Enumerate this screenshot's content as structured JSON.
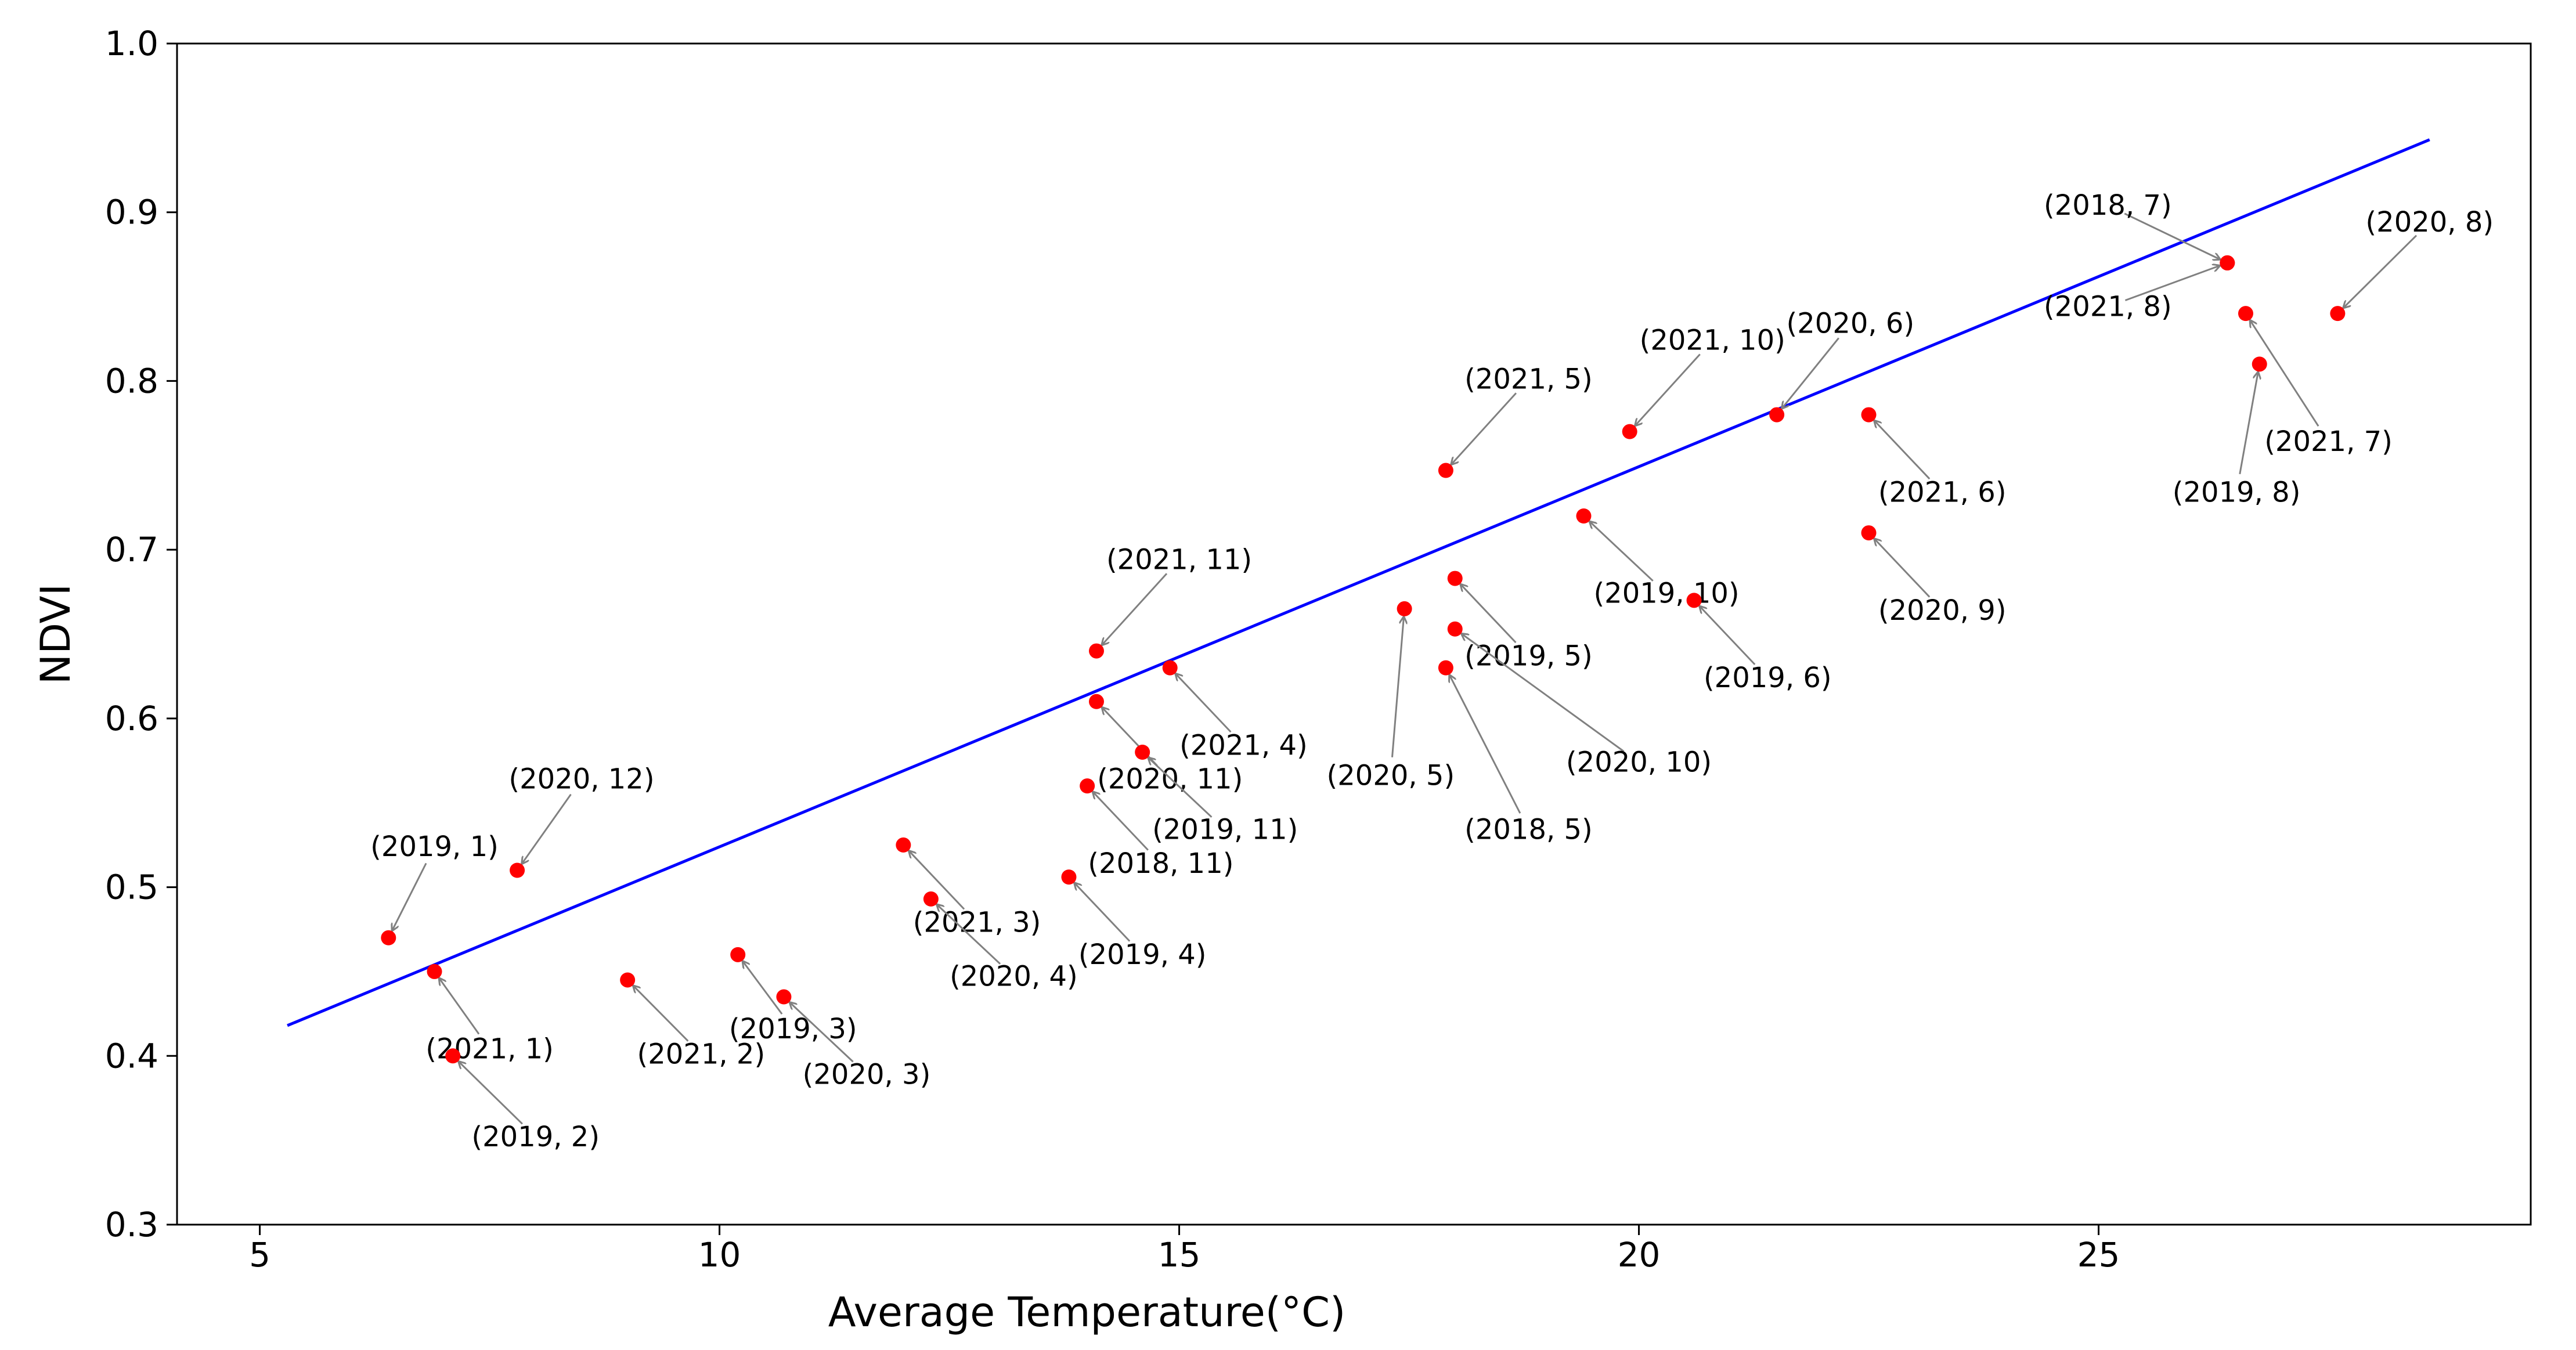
{
  "chart_data": {
    "type": "scatter",
    "title": "",
    "xlabel": "Average Temperature(°C)",
    "ylabel": "NDVI",
    "xlim": [
      4.1,
      29.7
    ],
    "ylim": [
      0.3,
      1.0
    ],
    "xticks": [
      5,
      10,
      15,
      20,
      25
    ],
    "yticks": [
      0.3,
      0.4,
      0.5,
      0.6,
      0.7,
      0.8,
      0.9,
      1.0
    ],
    "xtick_labels": [
      "5",
      "10",
      "15",
      "20",
      "25"
    ],
    "ytick_labels": [
      "0.3",
      "0.4",
      "0.5",
      "0.6",
      "0.7",
      "0.8",
      "0.9",
      "1.0"
    ],
    "grid": false,
    "point_color": "#ff0000",
    "fit_color": "#0000ff",
    "arrow_color": "#808080",
    "fit_line": {
      "x": [
        5.3,
        28.6
      ],
      "y": [
        0.418,
        0.943
      ]
    },
    "points": [
      {
        "label": "(2019, 1)",
        "x": 6.4,
        "y": 0.47,
        "lx": 6.9,
        "ly": 0.524
      },
      {
        "label": "(2020, 12)",
        "x": 7.8,
        "y": 0.51,
        "lx": 8.5,
        "ly": 0.564
      },
      {
        "label": "(2021, 1)",
        "x": 6.9,
        "y": 0.45,
        "lx": 7.5,
        "ly": 0.404
      },
      {
        "label": "(2019, 2)",
        "x": 7.1,
        "y": 0.4,
        "lx": 8.0,
        "ly": 0.352
      },
      {
        "label": "(2021, 2)",
        "x": 9.0,
        "y": 0.445,
        "lx": 9.8,
        "ly": 0.401
      },
      {
        "label": "(2019, 3)",
        "x": 10.2,
        "y": 0.46,
        "lx": 10.8,
        "ly": 0.416
      },
      {
        "label": "(2020, 3)",
        "x": 10.7,
        "y": 0.435,
        "lx": 11.6,
        "ly": 0.389
      },
      {
        "label": "(2021, 3)",
        "x": 12.0,
        "y": 0.525,
        "lx": 12.8,
        "ly": 0.479
      },
      {
        "label": "(2020, 4)",
        "x": 12.3,
        "y": 0.493,
        "lx": 13.2,
        "ly": 0.447
      },
      {
        "label": "(2019, 4)",
        "x": 13.8,
        "y": 0.506,
        "lx": 14.6,
        "ly": 0.46
      },
      {
        "label": "(2018, 11)",
        "x": 14.0,
        "y": 0.56,
        "lx": 14.8,
        "ly": 0.514
      },
      {
        "label": "(2020, 11)",
        "x": 14.1,
        "y": 0.61,
        "lx": 14.9,
        "ly": 0.564
      },
      {
        "label": "(2019, 11)",
        "x": 14.6,
        "y": 0.58,
        "lx": 15.5,
        "ly": 0.534
      },
      {
        "label": "(2021, 11)",
        "x": 14.1,
        "y": 0.64,
        "lx": 15.0,
        "ly": 0.694
      },
      {
        "label": "(2021, 4)",
        "x": 14.9,
        "y": 0.63,
        "lx": 15.7,
        "ly": 0.584
      },
      {
        "label": "(2020, 5)",
        "x": 17.45,
        "y": 0.665,
        "lx": 17.3,
        "ly": 0.566
      },
      {
        "label": "(2021, 5)",
        "x": 17.9,
        "y": 0.747,
        "lx": 18.8,
        "ly": 0.801
      },
      {
        "label": "(2018, 5)",
        "x": 17.9,
        "y": 0.63,
        "lx": 18.8,
        "ly": 0.534
      },
      {
        "label": "(2019, 5)",
        "x": 18.0,
        "y": 0.683,
        "lx": 18.8,
        "ly": 0.637
      },
      {
        "label": "(2020, 10)",
        "x": 18.0,
        "y": 0.653,
        "lx": 20.0,
        "ly": 0.574
      },
      {
        "label": "(2019, 10)",
        "x": 19.4,
        "y": 0.72,
        "lx": 20.3,
        "ly": 0.674
      },
      {
        "label": "(2021, 10)",
        "x": 19.9,
        "y": 0.77,
        "lx": 20.8,
        "ly": 0.824
      },
      {
        "label": "(2019, 6)",
        "x": 20.6,
        "y": 0.67,
        "lx": 21.4,
        "ly": 0.624
      },
      {
        "label": "(2020, 6)",
        "x": 21.5,
        "y": 0.78,
        "lx": 22.3,
        "ly": 0.834
      },
      {
        "label": "(2021, 6)",
        "x": 22.5,
        "y": 0.78,
        "lx": 23.3,
        "ly": 0.734
      },
      {
        "label": "(2020, 9)",
        "x": 22.5,
        "y": 0.71,
        "lx": 23.3,
        "ly": 0.664
      },
      {
        "label": "(2018, 7)",
        "x": 26.4,
        "y": 0.87,
        "lx": 25.1,
        "ly": 0.904
      },
      {
        "label": "(2021, 8)",
        "x": 26.4,
        "y": 0.87,
        "lx": 25.1,
        "ly": 0.844
      },
      {
        "label": "(2021, 7)",
        "x": 26.6,
        "y": 0.84,
        "lx": 27.5,
        "ly": 0.764
      },
      {
        "label": "(2019, 8)",
        "x": 26.75,
        "y": 0.81,
        "lx": 26.5,
        "ly": 0.734
      },
      {
        "label": "(2020, 8)",
        "x": 27.6,
        "y": 0.84,
        "lx": 28.6,
        "ly": 0.894
      }
    ]
  }
}
